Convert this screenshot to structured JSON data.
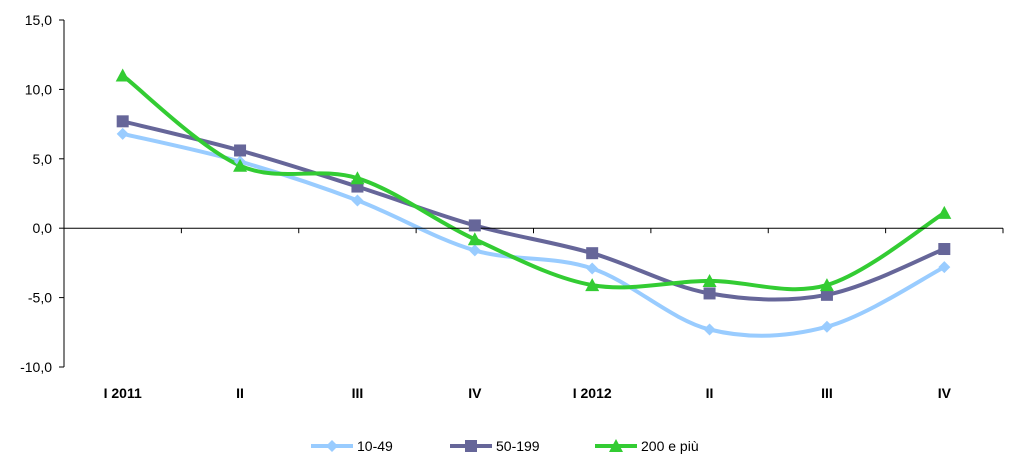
{
  "chart_data": {
    "type": "line",
    "categories": [
      "I 2011",
      "II",
      "III",
      "IV",
      "I 2012",
      "II",
      "III",
      "IV"
    ],
    "ylim": [
      -10,
      15
    ],
    "yticks": [
      "15,0",
      "10,0",
      "5,0",
      "0,0",
      "-5,0",
      "-10,0"
    ],
    "ytick_values": [
      15,
      10,
      5,
      0,
      -5,
      -10
    ],
    "grid": false,
    "legend": "bottom",
    "series": [
      {
        "name": "10-49",
        "color": "#99ccff",
        "marker": "diamond",
        "values": [
          6.8,
          4.8,
          2.0,
          -1.6,
          -2.9,
          -7.3,
          -7.1,
          -2.8
        ]
      },
      {
        "name": "50-199",
        "color": "#666699",
        "marker": "square",
        "values": [
          7.7,
          5.6,
          3.0,
          0.2,
          -1.8,
          -4.7,
          -4.8,
          -1.5
        ]
      },
      {
        "name": "200 e più",
        "color": "#33cc33",
        "marker": "triangle",
        "values": [
          11.0,
          4.5,
          3.6,
          -0.8,
          -4.1,
          -3.8,
          -4.1,
          1.1
        ]
      }
    ]
  }
}
